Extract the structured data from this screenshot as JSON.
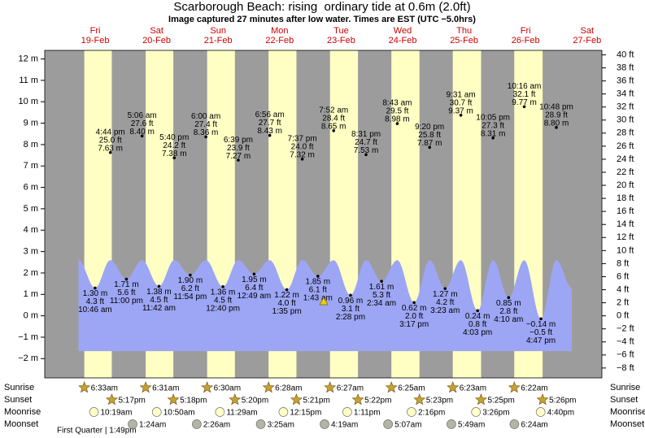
{
  "chart_data": {
    "type": "tide",
    "title": "Scarborough Beach: rising  ordinary tide at 0.6m (2.0ft)",
    "subtitle": "Image captured 27 minutes after low water. Times are EST (UTC −5.0hrs)",
    "ylim": [
      -2.9,
      12.4
    ],
    "yticks": [
      {
        "value": 12,
        "label": "12 m"
      },
      {
        "value": 11,
        "label": "11 m"
      },
      {
        "value": 10,
        "label": "10 m"
      },
      {
        "value": 9,
        "label": "9 m"
      },
      {
        "value": 8,
        "label": "8 m"
      },
      {
        "value": 7,
        "label": "7 m"
      },
      {
        "value": 6,
        "label": "6 m"
      },
      {
        "value": 5,
        "label": "5 m"
      },
      {
        "value": 4,
        "label": "4 m"
      },
      {
        "value": 3,
        "label": "3 m"
      },
      {
        "value": 2,
        "label": "2 m"
      },
      {
        "value": 1,
        "label": "1 m"
      },
      {
        "value": 0,
        "label": "0 m"
      },
      {
        "value": -1,
        "label": "−1 m"
      },
      {
        "value": -2,
        "label": "−2 m"
      }
    ],
    "y2lim": [
      -9.51,
      40.68
    ],
    "y2ticks": [
      {
        "value": 40,
        "label": "40 ft"
      },
      {
        "value": 38,
        "label": "38 ft"
      },
      {
        "value": 36,
        "label": "36 ft"
      },
      {
        "value": 34,
        "label": "34 ft"
      },
      {
        "value": 32,
        "label": "32 ft"
      },
      {
        "value": 30,
        "label": "30 ft"
      },
      {
        "value": 28,
        "label": "28 ft"
      },
      {
        "value": 26,
        "label": "26 ft"
      },
      {
        "value": 24,
        "label": "24 ft"
      },
      {
        "value": 22,
        "label": "22 ft"
      },
      {
        "value": 20,
        "label": "20 ft"
      },
      {
        "value": 18,
        "label": "18 ft"
      },
      {
        "value": 16,
        "label": "16 ft"
      },
      {
        "value": 14,
        "label": "14 ft"
      },
      {
        "value": 12,
        "label": "12 ft"
      },
      {
        "value": 10,
        "label": "10 ft"
      },
      {
        "value": 8,
        "label": "8 ft"
      },
      {
        "value": 6,
        "label": "6 ft"
      },
      {
        "value": 4,
        "label": "4 ft"
      },
      {
        "value": 2,
        "label": "2 ft"
      },
      {
        "value": 0,
        "label": "0 ft"
      },
      {
        "value": -2,
        "label": "−2 ft"
      },
      {
        "value": -4,
        "label": "−4 ft"
      },
      {
        "value": -6,
        "label": "−6 ft"
      },
      {
        "value": -8,
        "label": "−8 ft"
      }
    ],
    "row_labels": [
      "Sunrise",
      "Sunset",
      "Moonrise",
      "Moonset"
    ],
    "moon_phase": "First Quarter | 1:49pm",
    "days": [
      {
        "weekday": "Fri",
        "date": "19-Feb",
        "sunrise": "6:33am",
        "sunset": "5:17pm",
        "moonrise": "10:19am",
        "tides": [
          {
            "time": "10:46 am",
            "ft": "4.3 ft",
            "m": 1.3,
            "m_label": "1.30 m"
          },
          {
            "time": "4:44 pm",
            "ft": "25.0 ft",
            "m": 7.63,
            "m_label": "7.63 m"
          },
          {
            "time": "11:00 pm",
            "ft": "5.6 ft",
            "m": 1.71,
            "m_label": "1.71 m"
          }
        ]
      },
      {
        "weekday": "Sat",
        "date": "20-Feb",
        "sunrise": "6:31am",
        "sunset": "5:18pm",
        "moonrise": "10:50am",
        "moonset": "1:24am",
        "tides": [
          {
            "time": "5:06 am",
            "ft": "27.6 ft",
            "m": 8.4,
            "m_label": "8.40 m"
          },
          {
            "time": "11:42 am",
            "ft": "4.5 ft",
            "m": 1.38,
            "m_label": "1.38 m"
          },
          {
            "time": "5:40 pm",
            "ft": "24.2 ft",
            "m": 7.38,
            "m_label": "7.38 m"
          },
          {
            "time": "11:54 pm",
            "ft": "6.2 ft",
            "m": 1.9,
            "m_label": "1.90 m"
          }
        ]
      },
      {
        "weekday": "Sun",
        "date": "21-Feb",
        "sunrise": "6:30am",
        "sunset": "5:20pm",
        "moonrise": "11:29am",
        "moonset": "2:26am",
        "tides": [
          {
            "time": "6:00 am",
            "ft": "27.4 ft",
            "m": 8.36,
            "m_label": "8.36 m"
          },
          {
            "time": "12:40 pm",
            "ft": "4.5 ft",
            "m": 1.36,
            "m_label": "1.36 m"
          },
          {
            "time": "6:39 pm",
            "ft": "23.9 ft",
            "m": 7.27,
            "m_label": "7.27 m"
          }
        ]
      },
      {
        "weekday": "Mon",
        "date": "22-Feb",
        "sunrise": "6:28am",
        "sunset": "5:21pm",
        "moonrise": "12:15pm",
        "moonset": "3:25am",
        "tides": [
          {
            "time": "12:49 am",
            "ft": "6.4 ft",
            "m": 1.95,
            "m_label": "1.95 m"
          },
          {
            "time": "6:56 am",
            "ft": "27.7 ft",
            "m": 8.43,
            "m_label": "8.43 m"
          },
          {
            "time": "1:35 pm",
            "ft": "4.0 ft",
            "m": 1.22,
            "m_label": "1.22 m"
          },
          {
            "time": "7:37 pm",
            "ft": "24.0 ft",
            "m": 7.32,
            "m_label": "7.32 m"
          }
        ]
      },
      {
        "weekday": "Tue",
        "date": "23-Feb",
        "sunrise": "6:27am",
        "sunset": "5:22pm",
        "moonrise": "1:11pm",
        "moonset": "4:19am",
        "tides": [
          {
            "time": "1:43 am",
            "ft": "6.1 ft",
            "m": 1.85,
            "m_label": "1.85 m"
          },
          {
            "time": "7:52 am",
            "ft": "28.4 ft",
            "m": 8.65,
            "m_label": "8.65 m"
          },
          {
            "time": "2:28 pm",
            "ft": "3.1 ft",
            "m": 0.96,
            "m_label": "0.96 m"
          },
          {
            "time": "8:31 pm",
            "ft": "24.7 ft",
            "m": 7.53,
            "m_label": "7.53 m"
          }
        ]
      },
      {
        "weekday": "Wed",
        "date": "24-Feb",
        "sunrise": "6:25am",
        "sunset": "5:23pm",
        "moonrise": "2:16pm",
        "moonset": "5:07am",
        "tides": [
          {
            "time": "2:34 am",
            "ft": "5.3 ft",
            "m": 1.61,
            "m_label": "1.61 m"
          },
          {
            "time": "8:43 am",
            "ft": "29.5 ft",
            "m": 8.98,
            "m_label": "8.98 m"
          },
          {
            "time": "3:17 pm",
            "ft": "2.0 ft",
            "m": 0.62,
            "m_label": "0.62 m"
          },
          {
            "time": "9:20 pm",
            "ft": "25.8 ft",
            "m": 7.87,
            "m_label": "7.87 m"
          }
        ]
      },
      {
        "weekday": "Thu",
        "date": "25-Feb",
        "sunrise": "6:23am",
        "sunset": "5:25pm",
        "moonrise": "3:26pm",
        "moonset": "5:49am",
        "tides": [
          {
            "time": "3:23 am",
            "ft": "4.2 ft",
            "m": 1.27,
            "m_label": "1.27 m"
          },
          {
            "time": "9:31 am",
            "ft": "30.7 ft",
            "m": 9.37,
            "m_label": "9.37 m"
          },
          {
            "time": "4:03 pm",
            "ft": "0.8 ft",
            "m": 0.24,
            "m_label": "0.24 m"
          },
          {
            "time": "10:05 pm",
            "ft": "27.3 ft",
            "m": 8.31,
            "m_label": "8.31 m"
          }
        ]
      },
      {
        "weekday": "Fri",
        "date": "26-Feb",
        "sunrise": "6:22am",
        "sunset": "5:26pm",
        "moonrise": "4:40pm",
        "moonset": "6:24am",
        "tides": [
          {
            "time": "4:10 am",
            "ft": "2.8 ft",
            "m": 0.85,
            "m_label": "0.85 m"
          },
          {
            "time": "10:16 am",
            "ft": "32.1 ft",
            "m": 9.77,
            "m_label": "9.77 m"
          },
          {
            "time": "4:47 pm",
            "ft": "−0.5 ft",
            "m": -0.14,
            "m_label": "−0.14 m"
          },
          {
            "time": "10:48 pm",
            "ft": "28.9 ft",
            "m": 8.8,
            "m_label": "8.80 m"
          }
        ]
      },
      {
        "weekday": "Sat",
        "date": "27-Feb"
      }
    ]
  }
}
